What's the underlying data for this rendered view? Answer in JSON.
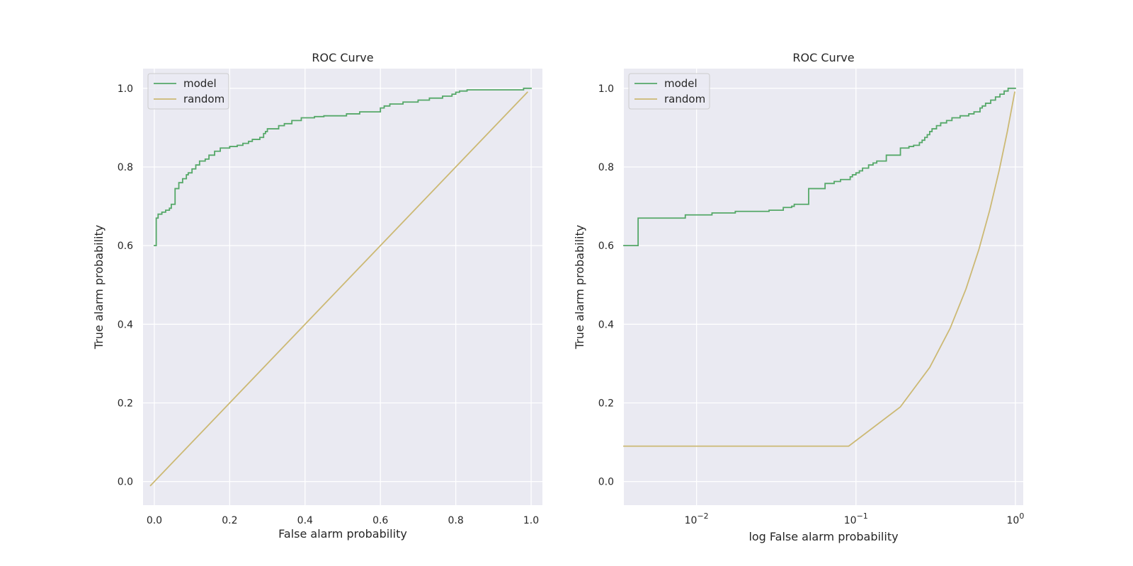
{
  "chart_data": [
    {
      "type": "line",
      "title": "ROC Curve",
      "xlabel": "False alarm probability",
      "ylabel": "True alarm probability",
      "xscale": "linear",
      "xlim": [
        -0.03,
        1.03
      ],
      "ylim": [
        -0.06,
        1.05
      ],
      "xticks": [
        0.0,
        0.2,
        0.4,
        0.6,
        0.8,
        1.0
      ],
      "xtick_labels": [
        "0.0",
        "0.2",
        "0.4",
        "0.6",
        "0.8",
        "1.0"
      ],
      "yticks": [
        0.0,
        0.2,
        0.4,
        0.6,
        0.8,
        1.0
      ],
      "ytick_labels": [
        "0.0",
        "0.2",
        "0.4",
        "0.6",
        "0.8",
        "1.0"
      ],
      "grid": true,
      "legend_position": "top-left",
      "series": [
        {
          "name": "model",
          "color": "#55a868",
          "step": true,
          "x": [
            0.0,
            0.005,
            0.01,
            0.02,
            0.03,
            0.04,
            0.045,
            0.055,
            0.065,
            0.075,
            0.085,
            0.09,
            0.1,
            0.11,
            0.12,
            0.135,
            0.145,
            0.16,
            0.175,
            0.2,
            0.22,
            0.235,
            0.25,
            0.26,
            0.28,
            0.29,
            0.295,
            0.3,
            0.33,
            0.345,
            0.365,
            0.39,
            0.425,
            0.45,
            0.51,
            0.545,
            0.6,
            0.61,
            0.625,
            0.66,
            0.7,
            0.73,
            0.765,
            0.79,
            0.8,
            0.81,
            0.83,
            0.98,
            1.0
          ],
          "y": [
            0.6,
            0.67,
            0.68,
            0.685,
            0.69,
            0.695,
            0.705,
            0.745,
            0.76,
            0.77,
            0.78,
            0.785,
            0.795,
            0.805,
            0.815,
            0.82,
            0.83,
            0.84,
            0.848,
            0.852,
            0.855,
            0.86,
            0.865,
            0.87,
            0.875,
            0.885,
            0.89,
            0.897,
            0.905,
            0.91,
            0.918,
            0.925,
            0.928,
            0.93,
            0.935,
            0.94,
            0.95,
            0.955,
            0.96,
            0.965,
            0.97,
            0.975,
            0.98,
            0.985,
            0.99,
            0.993,
            0.996,
            1.0,
            1.0
          ]
        },
        {
          "name": "random",
          "color": "#ccb974",
          "step": false,
          "x": [
            -0.01,
            0.99
          ],
          "y": [
            -0.01,
            0.99
          ]
        }
      ]
    },
    {
      "type": "line",
      "title": "ROC Curve",
      "xlabel": "log False alarm probability",
      "ylabel": "True alarm probability",
      "xscale": "log",
      "xlim": [
        0.0035,
        1.12
      ],
      "ylim": [
        -0.06,
        1.05
      ],
      "xticks": [
        0.01,
        0.1,
        1.0
      ],
      "xtick_labels": [
        "10−2",
        "10−1",
        "100"
      ],
      "yticks": [
        0.0,
        0.2,
        0.4,
        0.6,
        0.8,
        1.0
      ],
      "ytick_labels": [
        "0.0",
        "0.2",
        "0.4",
        "0.6",
        "0.8",
        "1.0"
      ],
      "grid": true,
      "legend_position": "top-left",
      "series": [
        {
          "name": "model",
          "color": "#55a868",
          "step": true,
          "x": [
            0.0035,
            0.0043,
            0.0085,
            0.0125,
            0.0175,
            0.0285,
            0.035,
            0.0395,
            0.041,
            0.0505,
            0.064,
            0.073,
            0.08,
            0.092,
            0.095,
            0.1,
            0.105,
            0.11,
            0.12,
            0.128,
            0.135,
            0.155,
            0.19,
            0.215,
            0.23,
            0.25,
            0.26,
            0.27,
            0.28,
            0.29,
            0.3,
            0.32,
            0.34,
            0.37,
            0.4,
            0.45,
            0.51,
            0.55,
            0.6,
            0.62,
            0.65,
            0.7,
            0.75,
            0.8,
            0.85,
            0.9,
            0.97,
            1.0
          ],
          "y": [
            0.6,
            0.67,
            0.678,
            0.683,
            0.687,
            0.69,
            0.697,
            0.7,
            0.705,
            0.745,
            0.758,
            0.763,
            0.768,
            0.775,
            0.78,
            0.785,
            0.79,
            0.797,
            0.805,
            0.81,
            0.815,
            0.83,
            0.848,
            0.852,
            0.855,
            0.862,
            0.868,
            0.875,
            0.882,
            0.89,
            0.897,
            0.905,
            0.912,
            0.918,
            0.925,
            0.93,
            0.935,
            0.94,
            0.95,
            0.955,
            0.962,
            0.97,
            0.978,
            0.985,
            0.993,
            1.0,
            1.0,
            1.0
          ]
        },
        {
          "name": "random",
          "color": "#ccb974",
          "step": false,
          "x": [
            0.0035,
            0.09,
            0.19,
            0.29,
            0.39,
            0.49,
            0.59,
            0.69,
            0.79,
            0.89,
            0.99
          ],
          "y": [
            0.09,
            0.09,
            0.19,
            0.29,
            0.39,
            0.49,
            0.59,
            0.69,
            0.79,
            0.89,
            0.99
          ]
        }
      ]
    }
  ]
}
